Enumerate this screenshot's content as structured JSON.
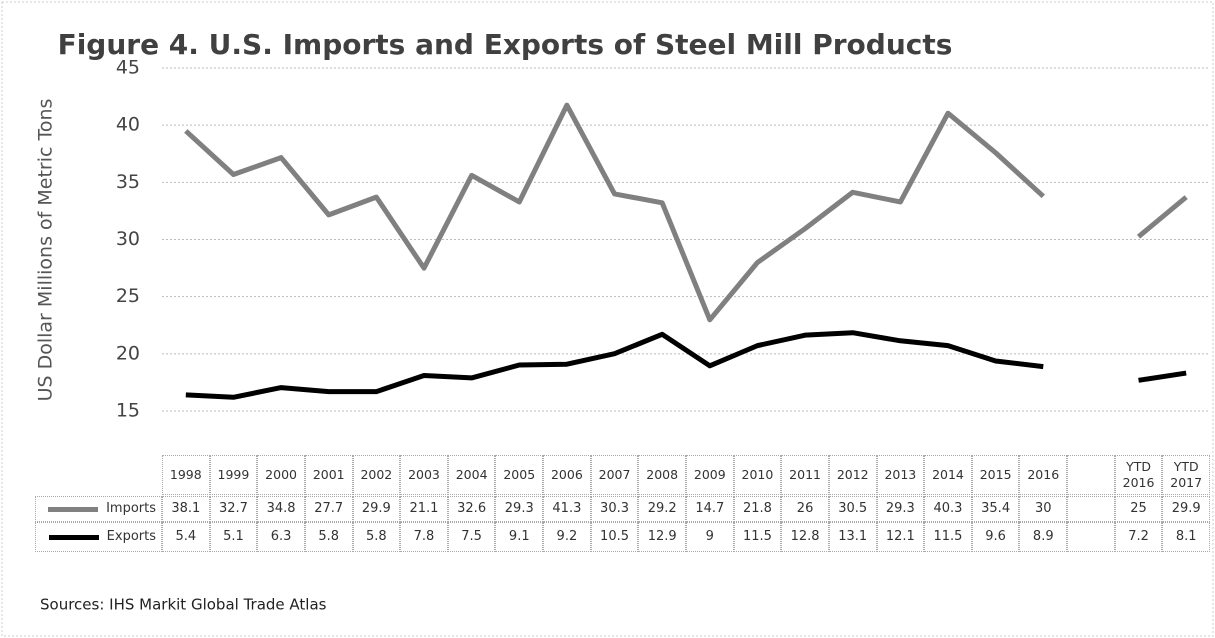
{
  "chart_data": {
    "type": "line",
    "title": "Figure 4. U.S. Imports and Exports of Steel Mill Products",
    "y_label": "US Dollar  Millions of Metric Tons",
    "source": "Sources: IHS Markit Global Trade Atlas",
    "categories": [
      "1998",
      "1999",
      "2000",
      "2001",
      "2002",
      "2003",
      "2004",
      "2005",
      "2006",
      "2007",
      "2008",
      "2009",
      "2010",
      "2011",
      "2012",
      "2013",
      "2014",
      "2015",
      "2016",
      null,
      "YTD 2016",
      "YTD 2017"
    ],
    "ylim": [
      15,
      45
    ],
    "yticks": [
      15,
      20,
      25,
      30,
      35,
      40,
      45
    ],
    "grid": true,
    "y2lim": [
      3.4,
      45.9
    ],
    "series": [
      {
        "name": "Imports",
        "color": "#808080",
        "axis": "y2",
        "values": [
          38.1,
          32.7,
          34.8,
          27.7,
          29.9,
          21.1,
          32.6,
          29.3,
          41.3,
          30.3,
          29.2,
          14.7,
          21.8,
          26,
          30.5,
          29.3,
          40.3,
          35.4,
          30,
          null,
          25,
          29.9
        ]
      },
      {
        "name": "Exports",
        "color": "#000000",
        "axis": "y2",
        "values": [
          5.4,
          5.1,
          6.3,
          5.8,
          5.8,
          7.8,
          7.5,
          9.1,
          9.2,
          10.5,
          12.9,
          9,
          11.5,
          12.8,
          13.1,
          12.1,
          11.5,
          9.6,
          8.9,
          null,
          7.2,
          8.1
        ]
      }
    ]
  }
}
